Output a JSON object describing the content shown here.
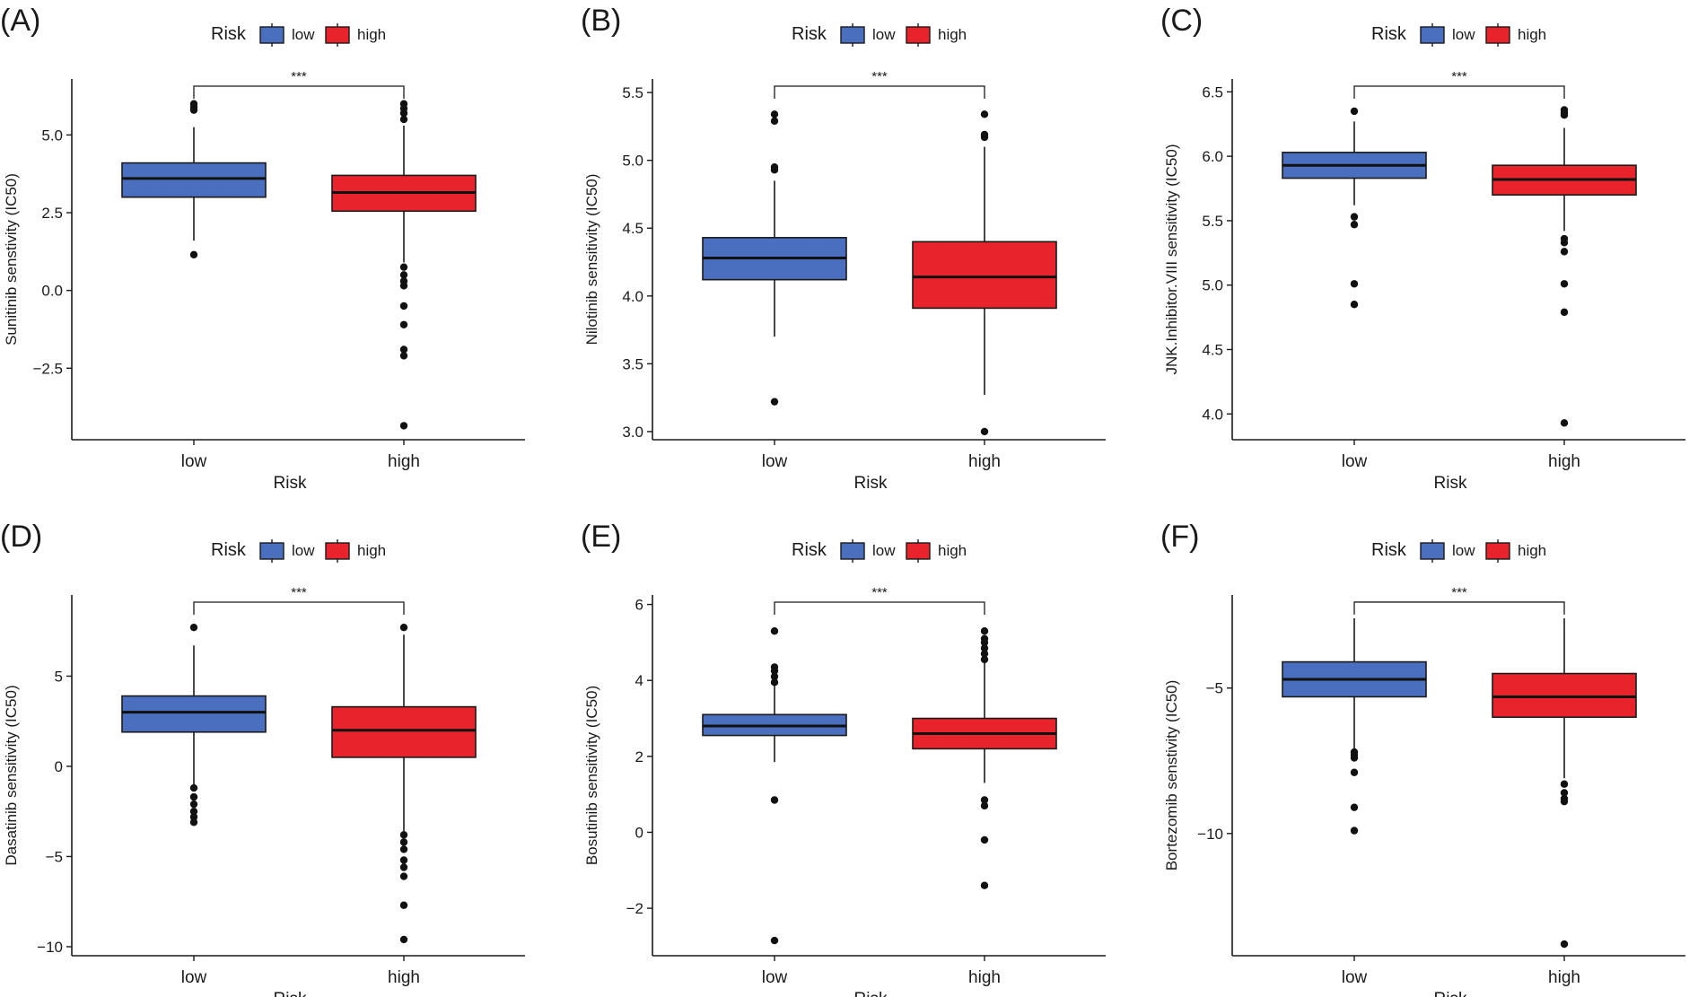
{
  "legend": {
    "title": "Risk",
    "items": [
      {
        "label": "low",
        "color": "#4a6fbf"
      },
      {
        "label": "high",
        "color": "#e8232b"
      }
    ]
  },
  "chart_data": [
    {
      "type": "boxplot",
      "panel_label": "(A)",
      "ylabel": "Sunitinib senstivity (IC50)",
      "xlabel": "Risk",
      "categories": [
        "low",
        "high"
      ],
      "ylim": [
        -4.8,
        6.8
      ],
      "yticks": [
        -2.5,
        0.0,
        2.5,
        5.0
      ],
      "ytick_labels": [
        "−2.5",
        "0.0",
        "2.5",
        "5.0"
      ],
      "significance": "***",
      "boxes": [
        {
          "category": "low",
          "color": "#4a6fbf",
          "q1": 3.0,
          "median": 3.6,
          "q3": 4.1,
          "whisker_low": 1.6,
          "whisker_high": 5.25,
          "outliers": [
            1.15,
            5.8,
            5.9,
            6.0
          ]
        },
        {
          "category": "high",
          "color": "#e8232b",
          "q1": 2.55,
          "median": 3.15,
          "q3": 3.7,
          "whisker_low": 0.9,
          "whisker_high": 5.3,
          "outliers": [
            0.75,
            0.5,
            0.3,
            0.15,
            -0.5,
            -1.1,
            -1.9,
            -2.1,
            -4.35,
            5.5,
            5.7,
            5.85,
            6.0
          ]
        }
      ]
    },
    {
      "type": "boxplot",
      "panel_label": "(B)",
      "ylabel": "Nilotinib sensitivity (IC50)",
      "xlabel": "Risk",
      "categories": [
        "low",
        "high"
      ],
      "ylim": [
        2.94,
        5.6
      ],
      "yticks": [
        3.0,
        3.5,
        4.0,
        4.5,
        5.0,
        5.5
      ],
      "ytick_labels": [
        "3.0",
        "3.5",
        "4.0",
        "4.5",
        "5.0",
        "5.5"
      ],
      "significance": "***",
      "boxes": [
        {
          "category": "low",
          "color": "#4a6fbf",
          "q1": 4.12,
          "median": 4.28,
          "q3": 4.43,
          "whisker_low": 3.7,
          "whisker_high": 4.85,
          "outliers": [
            3.22,
            4.93,
            4.95,
            5.29,
            5.34
          ]
        },
        {
          "category": "high",
          "color": "#e8232b",
          "q1": 3.91,
          "median": 4.14,
          "q3": 4.4,
          "whisker_low": 3.27,
          "whisker_high": 5.1,
          "outliers": [
            3.0,
            5.17,
            5.19,
            5.34
          ]
        }
      ]
    },
    {
      "type": "boxplot",
      "panel_label": "(C)",
      "ylabel": "JNK.Inhibitor.VIII sensitivity (IC50)",
      "xlabel": "Risk",
      "categories": [
        "low",
        "high"
      ],
      "ylim": [
        3.8,
        6.6
      ],
      "yticks": [
        4.0,
        4.5,
        5.0,
        5.5,
        6.0,
        6.5
      ],
      "ytick_labels": [
        "4.0",
        "4.5",
        "5.0",
        "5.5",
        "6.0",
        "6.5"
      ],
      "significance": "***",
      "boxes": [
        {
          "category": "low",
          "color": "#4a6fbf",
          "q1": 5.83,
          "median": 5.93,
          "q3": 6.03,
          "whisker_low": 5.62,
          "whisker_high": 6.27,
          "outliers": [
            4.85,
            5.01,
            5.47,
            5.53,
            6.35
          ]
        },
        {
          "category": "high",
          "color": "#e8232b",
          "q1": 5.7,
          "median": 5.82,
          "q3": 5.93,
          "whisker_low": 5.42,
          "whisker_high": 6.22,
          "outliers": [
            3.93,
            4.79,
            5.01,
            5.26,
            5.33,
            5.36,
            6.32,
            6.34,
            6.36
          ]
        }
      ]
    },
    {
      "type": "boxplot",
      "panel_label": "(D)",
      "ylabel": "Dasatinib sensitivity (IC50)",
      "xlabel": "Risk",
      "categories": [
        "low",
        "high"
      ],
      "ylim": [
        -10.5,
        9.5
      ],
      "yticks": [
        -10,
        -5,
        0,
        5
      ],
      "ytick_labels": [
        "−10",
        "−5",
        "0",
        "5"
      ],
      "significance": "***",
      "boxes": [
        {
          "category": "low",
          "color": "#4a6fbf",
          "q1": 1.9,
          "median": 3.0,
          "q3": 3.9,
          "whisker_low": -1.0,
          "whisker_high": 6.7,
          "outliers": [
            -1.2,
            -1.7,
            -2.1,
            -2.5,
            -2.8,
            -3.1,
            7.7
          ]
        },
        {
          "category": "high",
          "color": "#e8232b",
          "q1": 0.5,
          "median": 2.0,
          "q3": 3.3,
          "whisker_low": -3.6,
          "whisker_high": 7.3,
          "outliers": [
            -3.8,
            -4.2,
            -4.6,
            -5.2,
            -5.6,
            -6.1,
            -7.7,
            -9.6,
            7.7
          ]
        }
      ]
    },
    {
      "type": "boxplot",
      "panel_label": "(E)",
      "ylabel": "Bosutinib sensitivity (IC50)",
      "xlabel": "Risk",
      "categories": [
        "low",
        "high"
      ],
      "ylim": [
        -3.25,
        6.25
      ],
      "yticks": [
        -2,
        0,
        2,
        4,
        6
      ],
      "ytick_labels": [
        "−2",
        "0",
        "2",
        "4",
        "6"
      ],
      "significance": "***",
      "boxes": [
        {
          "category": "low",
          "color": "#4a6fbf",
          "q1": 2.55,
          "median": 2.8,
          "q3": 3.1,
          "whisker_low": 1.85,
          "whisker_high": 3.9,
          "outliers": [
            -2.85,
            0.85,
            3.95,
            4.1,
            4.25,
            4.35,
            5.3
          ]
        },
        {
          "category": "high",
          "color": "#e8232b",
          "q1": 2.2,
          "median": 2.6,
          "q3": 3.0,
          "whisker_low": 1.3,
          "whisker_high": 4.5,
          "outliers": [
            -1.4,
            -0.2,
            0.7,
            0.85,
            4.55,
            4.7,
            4.85,
            5.0,
            5.1,
            5.3
          ]
        }
      ]
    },
    {
      "type": "boxplot",
      "panel_label": "(F)",
      "ylabel": "Bortezomib senstivity (IC50)",
      "xlabel": "Risk",
      "categories": [
        "low",
        "high"
      ],
      "ylim": [
        -14.2,
        -1.8
      ],
      "yticks": [
        -10,
        -5
      ],
      "ytick_labels": [
        "−10",
        "−5"
      ],
      "significance": "***",
      "boxes": [
        {
          "category": "low",
          "color": "#4a6fbf",
          "q1": -5.3,
          "median": -4.7,
          "q3": -4.1,
          "whisker_low": -7.1,
          "whisker_high": -2.6,
          "outliers": [
            -7.2,
            -7.3,
            -7.4,
            -7.9,
            -9.1,
            -9.9
          ]
        },
        {
          "category": "high",
          "color": "#e8232b",
          "q1": -6.0,
          "median": -5.3,
          "q3": -4.5,
          "whisker_low": -8.1,
          "whisker_high": -2.6,
          "outliers": [
            -8.3,
            -8.6,
            -8.8,
            -8.9,
            -13.8
          ]
        }
      ]
    }
  ]
}
